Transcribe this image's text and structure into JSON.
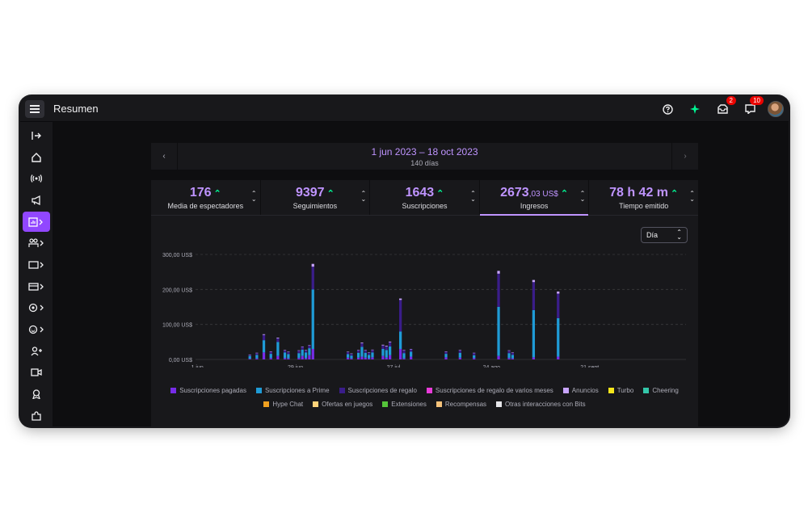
{
  "header": {
    "title": "Resumen",
    "mail_badge": "2",
    "notif_badge": "10"
  },
  "icons": {
    "menu": "hamburger-icon",
    "help": "help-icon",
    "sparkle": "sparkle-icon",
    "mail": "inbox-icon",
    "notifications": "notifications-icon"
  },
  "sidebar": {
    "items": [
      "collapse",
      "home",
      "stream",
      "promote",
      "analytics",
      "community",
      "content",
      "monetization",
      "settings",
      "viewer-rewards",
      "creator-camp",
      "video",
      "achievements",
      "extensions"
    ]
  },
  "daterange": {
    "range": "1 jun 2023 – 18 oct 2023",
    "days": "140 días",
    "prev": "‹",
    "next": "›"
  },
  "stats": [
    {
      "value": "176",
      "cents": "",
      "label": "Media de espectadores"
    },
    {
      "value": "9397",
      "cents": "",
      "label": "Seguimientos"
    },
    {
      "value": "1643",
      "cents": "",
      "label": "Suscripciones"
    },
    {
      "value": "2673",
      "cents": ",03 US$",
      "label": "Ingresos"
    },
    {
      "value": "78 h 42 m",
      "cents": "",
      "label": "Tiempo emitido"
    }
  ],
  "select": {
    "value": "Día"
  },
  "chart_data": {
    "type": "bar",
    "stacked": true,
    "y_ticks": [
      "0,00 US$",
      "100,00 US$",
      "200,00 US$",
      "300,00 US$"
    ],
    "x_ticks": [
      "1 jun",
      "29 jun",
      "27 jul",
      "24 ago",
      "21 sept"
    ],
    "ylim": [
      0,
      300
    ],
    "series": [
      {
        "name": "Suscripciones pagadas",
        "color": "#772ce8",
        "values": [
          0,
          0,
          0,
          0,
          0,
          0,
          0,
          0,
          0,
          0,
          0,
          0,
          0,
          0,
          0,
          2,
          0,
          3,
          0,
          20,
          0,
          4,
          0,
          10,
          0,
          4,
          3,
          0,
          0,
          4,
          10,
          4,
          12,
          30,
          0,
          0,
          0,
          0,
          0,
          0,
          0,
          0,
          0,
          5,
          3,
          0,
          5,
          8,
          5,
          3,
          6,
          0,
          0,
          10,
          5,
          12,
          0,
          0,
          30,
          3,
          0,
          8,
          0,
          0,
          0,
          0,
          0,
          0,
          0,
          0,
          0,
          6,
          0,
          0,
          0,
          5,
          0,
          0,
          0,
          4,
          0,
          0,
          0,
          0,
          0,
          0,
          10,
          0,
          0,
          4,
          3,
          0,
          0,
          0,
          0,
          0,
          6,
          0,
          0,
          0,
          0,
          0,
          0,
          8,
          0,
          0,
          0,
          0,
          0,
          0,
          0,
          0,
          0,
          0,
          0,
          0,
          0,
          0,
          0,
          0,
          0,
          0,
          0,
          0,
          0,
          0,
          0,
          0,
          0,
          0,
          0,
          0,
          0,
          0,
          0,
          0,
          0,
          0,
          0,
          0
        ]
      },
      {
        "name": "Suscripciones a Prime",
        "color": "#1f9bd6",
        "values": [
          0,
          0,
          0,
          0,
          0,
          0,
          0,
          0,
          0,
          0,
          0,
          0,
          0,
          0,
          0,
          8,
          0,
          10,
          0,
          35,
          0,
          12,
          0,
          40,
          0,
          16,
          12,
          0,
          0,
          14,
          18,
          16,
          20,
          170,
          0,
          0,
          0,
          0,
          0,
          0,
          0,
          0,
          0,
          10,
          8,
          0,
          14,
          28,
          14,
          10,
          14,
          0,
          0,
          20,
          22,
          25,
          0,
          0,
          50,
          15,
          0,
          14,
          0,
          0,
          0,
          0,
          0,
          0,
          0,
          0,
          0,
          10,
          0,
          0,
          0,
          14,
          0,
          0,
          0,
          8,
          0,
          0,
          0,
          0,
          0,
          0,
          140,
          0,
          0,
          14,
          10,
          0,
          0,
          0,
          0,
          0,
          135,
          0,
          0,
          0,
          0,
          0,
          0,
          110,
          0,
          0,
          0,
          0,
          0,
          0,
          0,
          0,
          0,
          0,
          0,
          0,
          0,
          0,
          0,
          0,
          0,
          0,
          0,
          0,
          0,
          0,
          0,
          0,
          0,
          0,
          0,
          0,
          0,
          0,
          0,
          0,
          0,
          0,
          0,
          0
        ]
      },
      {
        "name": "Suscripciones de regalo",
        "color": "#3a1d8a",
        "values": [
          0,
          0,
          0,
          0,
          0,
          0,
          0,
          0,
          0,
          0,
          0,
          0,
          0,
          0,
          0,
          3,
          0,
          5,
          0,
          15,
          0,
          6,
          0,
          10,
          0,
          6,
          6,
          0,
          0,
          7,
          8,
          6,
          8,
          65,
          0,
          0,
          0,
          0,
          0,
          0,
          0,
          0,
          0,
          6,
          5,
          0,
          7,
          10,
          7,
          6,
          7,
          0,
          0,
          10,
          10,
          12,
          0,
          0,
          90,
          8,
          0,
          7,
          0,
          0,
          0,
          0,
          0,
          0,
          0,
          0,
          0,
          6,
          0,
          0,
          0,
          7,
          0,
          0,
          0,
          6,
          0,
          0,
          0,
          0,
          0,
          0,
          95,
          0,
          0,
          7,
          6,
          0,
          0,
          0,
          0,
          0,
          80,
          0,
          0,
          0,
          0,
          0,
          0,
          70,
          0,
          0,
          0,
          0,
          0,
          0,
          0,
          0,
          0,
          0,
          0,
          0,
          0,
          0,
          0,
          0,
          0,
          0,
          0,
          0,
          0,
          0,
          0,
          0,
          0,
          0,
          0,
          0,
          0,
          0,
          0,
          0,
          0,
          0,
          0,
          0
        ]
      },
      {
        "name": "Suscripciones de regalo de varios meses",
        "color": "#e93bd9",
        "values": []
      },
      {
        "name": "Anuncios",
        "color": "#c8a4ff",
        "values": [
          0,
          0,
          0,
          0,
          0,
          0,
          0,
          0,
          0,
          0,
          0,
          0,
          0,
          0,
          0,
          1,
          0,
          1,
          0,
          2,
          0,
          1,
          0,
          2,
          0,
          1,
          1,
          0,
          0,
          1,
          1,
          1,
          1,
          8,
          0,
          0,
          0,
          0,
          0,
          0,
          0,
          0,
          0,
          1,
          1,
          0,
          1,
          2,
          1,
          1,
          1,
          0,
          0,
          2,
          2,
          2,
          0,
          0,
          4,
          1,
          0,
          1,
          0,
          0,
          0,
          0,
          0,
          0,
          0,
          0,
          0,
          1,
          0,
          0,
          0,
          1,
          0,
          0,
          0,
          1,
          0,
          0,
          0,
          0,
          0,
          0,
          8,
          0,
          0,
          1,
          1,
          0,
          0,
          0,
          0,
          0,
          6,
          0,
          0,
          0,
          0,
          0,
          0,
          6,
          0,
          0,
          0,
          0,
          0,
          0,
          0,
          0,
          0,
          0,
          0,
          0,
          0,
          0,
          0,
          0,
          0,
          0,
          0,
          0,
          0,
          0,
          0,
          0,
          0,
          0,
          0,
          0,
          0,
          0,
          0,
          0,
          0,
          0,
          0,
          0
        ]
      },
      {
        "name": "Turbo",
        "color": "#f5e51b",
        "values": []
      },
      {
        "name": "Cheering",
        "color": "#33c6a9",
        "values": []
      },
      {
        "name": "Hype Chat",
        "color": "#f0a020",
        "values": []
      },
      {
        "name": "Ofertas en juegos",
        "color": "#ffd37a",
        "values": []
      },
      {
        "name": "Extensiones",
        "color": "#55c43a",
        "values": []
      },
      {
        "name": "Recompensas",
        "color": "#f5c27a",
        "values": []
      },
      {
        "name": "Otras interacciones con Bits",
        "color": "#e6e6ea",
        "values": []
      }
    ]
  }
}
